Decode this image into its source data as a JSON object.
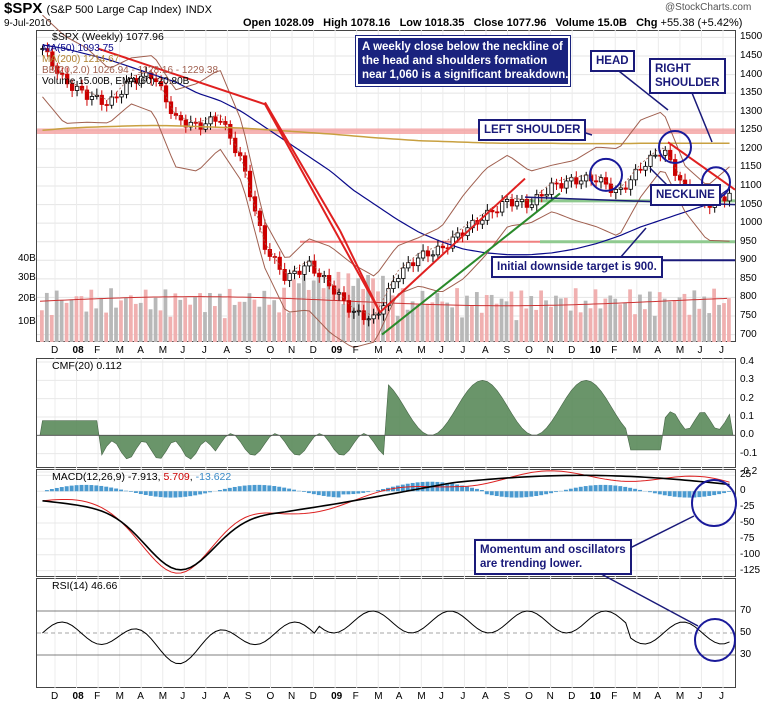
{
  "header": {
    "symbol": "$SPX",
    "name": "(S&P 500 Large Cap Index)",
    "exchange": "INDX",
    "date": "9-Jul-2010",
    "open_label": "Open",
    "open": "1028.09",
    "high_label": "High",
    "high": "1078.16",
    "low_label": "Low",
    "low": "1018.35",
    "close_label": "Close",
    "close": "1077.96",
    "volume_label": "Volume",
    "volume": "15.0B",
    "chg_label": "Chg",
    "chg": "+55.38 (+5.42%)",
    "watermark": "@StockCharts.com"
  },
  "legend": {
    "price": "$SPX (Weekly) 1077.96",
    "ma50": "MA(50) 1093.75",
    "ma200": "MA(200) 1214.67",
    "bb": "BB(20,2.0) 1026.94 - 1128.16 - 1229.38",
    "volume": "Volume 15.00B, EMA(60) 20.80B"
  },
  "annotations": {
    "breakdown": "A weekly close below the neckline of\nthe head and shoulders formation\nnear 1,060 is a significant breakdown.",
    "head": "HEAD",
    "right_shoulder": "RIGHT\nSHOULDER",
    "left_shoulder": "LEFT SHOULDER",
    "neckline": "NECKLINE",
    "target": "Initial downside target is 900.",
    "momentum": "Momentum and oscillators\nare trending lower."
  },
  "panels": {
    "cmf": "CMF(20) 0.112",
    "macd_prefix": "MACD(12,26,9)",
    "macd_v1": "-7.913",
    "macd_v2": "5.709",
    "macd_v3": "-13.622",
    "rsi": "RSI(14) 46.66"
  },
  "axis": {
    "months": [
      "D",
      "08",
      "F",
      "M",
      "A",
      "M",
      "J",
      "J",
      "A",
      "S",
      "O",
      "N",
      "D",
      "09",
      "F",
      "M",
      "A",
      "M",
      "J",
      "J",
      "A",
      "S",
      "O",
      "N",
      "D",
      "10",
      "F",
      "M",
      "A",
      "M",
      "J",
      "J"
    ],
    "price_ticks": [
      "1500",
      "1450",
      "1400",
      "1350",
      "1300",
      "1250",
      "1200",
      "1150",
      "1100",
      "1050",
      "1000",
      "950",
      "900",
      "850",
      "800",
      "750",
      "700"
    ],
    "volume_ticks": [
      "40B",
      "30B",
      "20B",
      "10B"
    ],
    "cmf_ticks": [
      "0.4",
      "0.3",
      "0.2",
      "0.1",
      "0.0",
      "-0.1",
      "-0.2"
    ],
    "macd_ticks": [
      "25",
      "0",
      "-25",
      "-50",
      "-75",
      "-100",
      "-125"
    ],
    "rsi_ticks": [
      "70",
      "50",
      "30"
    ]
  },
  "colors": {
    "up": "#000000",
    "down": "#cc0000",
    "ma50": "#0a0a8a",
    "ma200": "#c8a040",
    "bb": "#a06050",
    "cmf": "#5a8a5a",
    "cmf_neg": "#a06a5a",
    "macd_hist": "#4a9ad0",
    "annotation": "#1a1a7a"
  },
  "chart_data": {
    "type": "line",
    "title": "$SPX (S&P 500 Large Cap Index) Weekly",
    "x": [
      "2007-12",
      "2008-01",
      "2008-02",
      "2008-03",
      "2008-04",
      "2008-05",
      "2008-06",
      "2008-07",
      "2008-08",
      "2008-09",
      "2008-10",
      "2008-11",
      "2008-12",
      "2009-01",
      "2009-02",
      "2009-03",
      "2009-04",
      "2009-05",
      "2009-06",
      "2009-07",
      "2009-08",
      "2009-09",
      "2009-10",
      "2009-11",
      "2009-12",
      "2010-01",
      "2010-02",
      "2010-03",
      "2010-04",
      "2010-05",
      "2010-06",
      "2010-07"
    ],
    "series": [
      {
        "name": "$SPX",
        "values": [
          1470,
          1380,
          1345,
          1320,
          1385,
          1400,
          1280,
          1260,
          1285,
          1165,
          940,
          850,
          890,
          830,
          760,
          740,
          860,
          910,
          930,
          980,
          1020,
          1060,
          1050,
          1100,
          1115,
          1120,
          1080,
          1150,
          1200,
          1090,
          1050,
          1078
        ]
      },
      {
        "name": "MA(50)",
        "values": [
          1480,
          1470,
          1455,
          1440,
          1420,
          1400,
          1380,
          1350,
          1330,
          1300,
          1260,
          1220,
          1180,
          1140,
          1090,
          1050,
          1010,
          975,
          950,
          930,
          920,
          915,
          915,
          920,
          930,
          945,
          965,
          990,
          1010,
          1030,
          1050,
          1094
        ]
      },
      {
        "name": "MA(200)",
        "values": [
          1250,
          1255,
          1258,
          1260,
          1262,
          1263,
          1262,
          1260,
          1258,
          1256,
          1252,
          1248,
          1244,
          1240,
          1235,
          1230,
          1226,
          1222,
          1220,
          1218,
          1216,
          1215,
          1215,
          1215,
          1214,
          1214,
          1214,
          1215,
          1215,
          1215,
          1215,
          1215
        ]
      }
    ],
    "volume_ylim": [
      0,
      45
    ],
    "ylim": [
      680,
      1520
    ],
    "cmf_ylim": [
      -0.2,
      0.4
    ],
    "macd_ylim": [
      -125,
      25
    ],
    "rsi_ylim": [
      0,
      100
    ],
    "levels": {
      "neckline": 1060,
      "resistance": 1250,
      "support": 950,
      "target": 900
    },
    "grid": true
  }
}
